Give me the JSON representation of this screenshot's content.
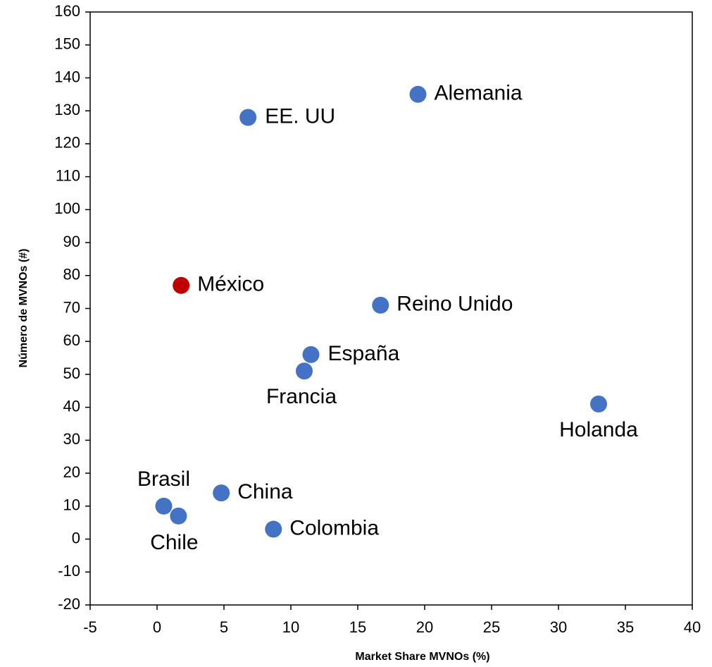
{
  "chart_data": {
    "type": "scatter",
    "x_label": "Market Share MVNOs (%)",
    "y_label": "Número de MVNOs (#)",
    "point_labels": [
      "Alemania",
      "EE. UU",
      "México",
      "Reino Unido",
      "España",
      "Francia",
      "Holanda",
      "China",
      "Brasil",
      "Chile",
      "Colombia"
    ],
    "x": [
      19.5,
      6.8,
      1.8,
      16.7,
      11.5,
      11.0,
      33.0,
      4.8,
      0.5,
      1.6,
      8.7
    ],
    "y": [
      135,
      128,
      77,
      71,
      56,
      51,
      41,
      14,
      10,
      7,
      3
    ],
    "colors": [
      "#4472c4",
      "#4472c4",
      "#c00000",
      "#4472c4",
      "#4472c4",
      "#4472c4",
      "#4472c4",
      "#4472c4",
      "#4472c4",
      "#4472c4",
      "#4472c4"
    ],
    "xlim": [
      -5,
      40
    ],
    "xticks": [
      -5,
      0,
      5,
      10,
      15,
      20,
      25,
      30,
      35,
      40
    ],
    "ylim": [
      -20,
      160
    ],
    "yticks": [
      -20,
      -10,
      0,
      10,
      20,
      30,
      40,
      50,
      60,
      70,
      80,
      90,
      100,
      110,
      120,
      130,
      140,
      150,
      160
    ],
    "grid": false
  }
}
